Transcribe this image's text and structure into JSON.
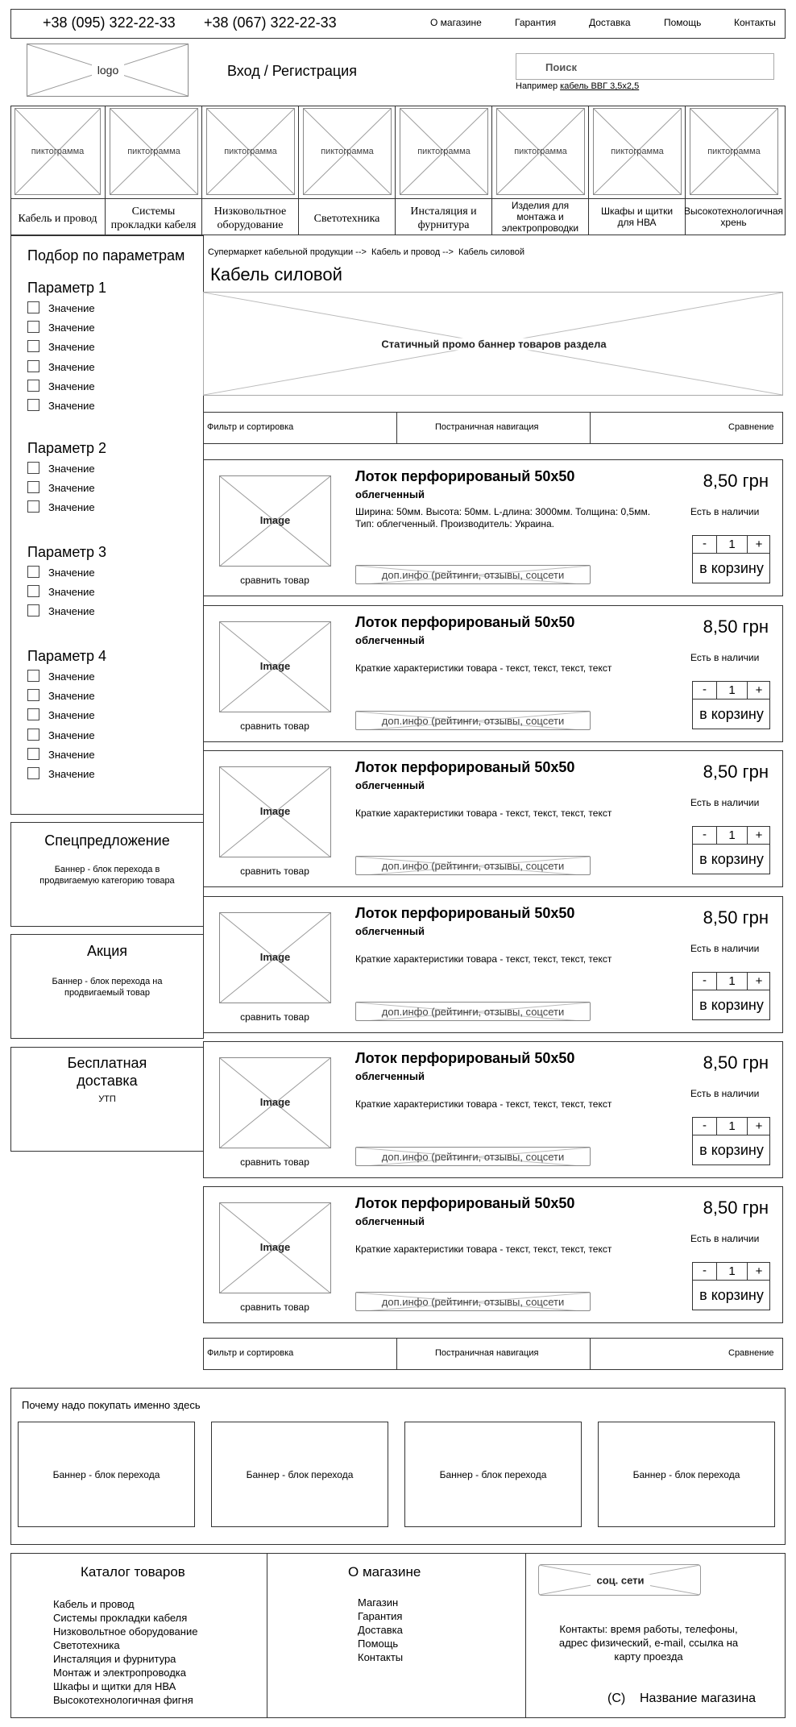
{
  "header": {
    "phones": [
      "+38 (095) 322-22-33",
      "+38 (067) 322-22-33"
    ],
    "nav": [
      "О магазине",
      "Гарантия",
      "Доставка",
      "Помощь",
      "Контакты"
    ],
    "logo": "logo",
    "login": "Вход / Регистрация",
    "search_placeholder": "Поиск",
    "search_hint_prefix": "Например ",
    "search_hint_link": "кабель ВВГ 3,5х2,5"
  },
  "categories": {
    "icon_label": "пиктограмма",
    "items": [
      "Кабель и провод",
      "Системы прокладки кабеля",
      "Низковольтное оборудование",
      "Светотехника",
      "Инсталяция и фурнитура",
      "Изделия для монтажа и электропроводки",
      "Шкафы и щитки для НВА",
      "Высокотехнологичная хрень"
    ]
  },
  "sidebar": {
    "title": "Подбор по параметрам",
    "params": [
      {
        "name": "Параметр 1",
        "values": [
          "Значение",
          "Значение",
          "Значение",
          "Значение",
          "Значение",
          "Значение"
        ]
      },
      {
        "name": "Параметр 2",
        "values": [
          "Значение",
          "Значение",
          "Значение"
        ]
      },
      {
        "name": "Параметр 3",
        "values": [
          "Значение",
          "Значение",
          "Значение"
        ]
      },
      {
        "name": "Параметр 4",
        "values": [
          "Значение",
          "Значение",
          "Значение",
          "Значение",
          "Значение",
          "Значение"
        ]
      }
    ],
    "promos": [
      {
        "title": "Спецпредложение",
        "text": "Баннер - блок перехода в продвигаемую категорию товара"
      },
      {
        "title": "Акция",
        "text": "Баннер - блок перехода на продвигаемый товар"
      },
      {
        "title": "Бесплатная доставка",
        "text": "УТП"
      }
    ]
  },
  "main": {
    "breadcrumb": "Супермаркет кабельной продукции -->  Кабель и провод -->  Кабель силовой",
    "title": "Кабель силовой",
    "banner": "Статичный промо баннер товаров раздела",
    "toolbar": {
      "filter": "Фильтр и сортировка",
      "pagination": "Постраничная навигация",
      "compare": "Сравнение"
    }
  },
  "products": [
    {
      "title": "Лоток перфорированый 50х50",
      "subtitle": "облегченный",
      "desc": "Ширина: 50мм. Высота: 50мм. L-длина: 3000мм. Толщина: 0,5мм.\nТип: облегченный. Производитель: Украина.",
      "price": "8,50 грн",
      "stock": "Есть в наличии",
      "qty": "1",
      "image": "Image",
      "compare": "сравнить товар",
      "extra": "доп.инфо (рейтинги, отзывы, соцсети",
      "cart": "в корзину"
    },
    {
      "title": "Лоток перфорированый 50х50",
      "subtitle": "облегченный",
      "desc": "Краткие характеристики товара - текст, текст, текст, текст",
      "price": "8,50 грн",
      "stock": "Есть в наличии",
      "qty": "1",
      "image": "Image",
      "compare": "сравнить товар",
      "extra": "доп.инфо (рейтинги, отзывы, соцсети",
      "cart": "в корзину"
    },
    {
      "title": "Лоток перфорированый 50х50",
      "subtitle": "облегченный",
      "desc": "Краткие характеристики товара - текст, текст, текст, текст",
      "price": "8,50 грн",
      "stock": "Есть в наличии",
      "qty": "1",
      "image": "Image",
      "compare": "сравнить товар",
      "extra": "доп.инфо (рейтинги, отзывы, соцсети",
      "cart": "в корзину"
    },
    {
      "title": "Лоток перфорированый 50х50",
      "subtitle": "облегченный",
      "desc": "Краткие характеристики товара - текст, текст, текст, текст",
      "price": "8,50 грн",
      "stock": "Есть в наличии",
      "qty": "1",
      "image": "Image",
      "compare": "сравнить товар",
      "extra": "доп.инфо (рейтинги, отзывы, соцсети",
      "cart": "в корзину"
    },
    {
      "title": "Лоток перфорированый 50х50",
      "subtitle": "облегченный",
      "desc": "Краткие характеристики товара - текст, текст, текст, текст",
      "price": "8,50 грн",
      "stock": "Есть в наличии",
      "qty": "1",
      "image": "Image",
      "compare": "сравнить товар",
      "extra": "доп.инфо (рейтинги, отзывы, соцсети",
      "cart": "в корзину"
    },
    {
      "title": "Лоток перфорированый 50х50",
      "subtitle": "облегченный",
      "desc": "Краткие характеристики товара - текст, текст, текст, текст",
      "price": "8,50 грн",
      "stock": "Есть в наличии",
      "qty": "1",
      "image": "Image",
      "compare": "сравнить товар",
      "extra": "доп.инфо (рейтинги, отзывы, соцсети",
      "cart": "в корзину"
    }
  ],
  "qty_minus": "-",
  "qty_plus": "+",
  "why": {
    "title": "Почему надо покупать именно здесь",
    "banners": [
      "Баннер - блок перехода",
      "Баннер - блок перехода",
      "Баннер - блок перехода",
      "Баннер - блок перехода"
    ]
  },
  "footer": {
    "catalog_title": "Каталог товаров",
    "catalog": [
      "Кабель и провод",
      "Системы прокладки кабеля",
      "Низковольтное оборудование",
      "Светотехника",
      "Инсталяция и фурнитура",
      "Монтаж и электропроводка",
      "Шкафы и щитки для НВА",
      "Высокотехнологичная фигня"
    ],
    "about_title": "О магазине",
    "about": [
      "Магазин",
      "Гарантия",
      "Доставка",
      "Помощь",
      "Контакты"
    ],
    "social": "соц. сети",
    "contacts": "Контакты: время работы, телефоны, адрес физический, e-mail, ссылка на карту проезда",
    "copyright": "(C)    Название магазина"
  }
}
